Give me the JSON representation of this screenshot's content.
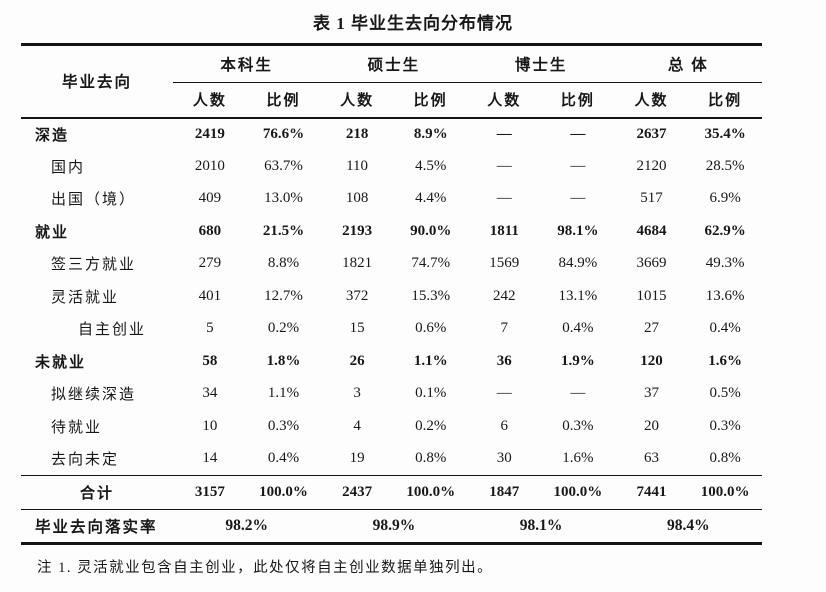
{
  "title": "表 1 毕业生去向分布情况",
  "table": {
    "corner_label": "毕业去向",
    "groups": [
      "本科生",
      "硕士生",
      "博士生",
      "总  体"
    ],
    "subheaders": [
      "人数",
      "比例"
    ],
    "rows": [
      {
        "label": "深造",
        "values": [
          "2419",
          "76.6%",
          "218",
          "8.9%",
          "—",
          "—",
          "2637",
          "35.4%"
        ]
      },
      {
        "label": "国内",
        "values": [
          "2010",
          "63.7%",
          "110",
          "4.5%",
          "—",
          "—",
          "2120",
          "28.5%"
        ]
      },
      {
        "label": "出国（境）",
        "values": [
          "409",
          "13.0%",
          "108",
          "4.4%",
          "—",
          "—",
          "517",
          "6.9%"
        ]
      },
      {
        "label": "就业",
        "values": [
          "680",
          "21.5%",
          "2193",
          "90.0%",
          "1811",
          "98.1%",
          "4684",
          "62.9%"
        ]
      },
      {
        "label": "签三方就业",
        "values": [
          "279",
          "8.8%",
          "1821",
          "74.7%",
          "1569",
          "84.9%",
          "3669",
          "49.3%"
        ]
      },
      {
        "label": "灵活就业",
        "values": [
          "401",
          "12.7%",
          "372",
          "15.3%",
          "242",
          "13.1%",
          "1015",
          "13.6%"
        ]
      },
      {
        "label": "自主创业",
        "values": [
          "5",
          "0.2%",
          "15",
          "0.6%",
          "7",
          "0.4%",
          "27",
          "0.4%"
        ]
      },
      {
        "label": "未就业",
        "values": [
          "58",
          "1.8%",
          "26",
          "1.1%",
          "36",
          "1.9%",
          "120",
          "1.6%"
        ]
      },
      {
        "label": "拟继续深造",
        "values": [
          "34",
          "1.1%",
          "3",
          "0.1%",
          "—",
          "—",
          "37",
          "0.5%"
        ]
      },
      {
        "label": "待就业",
        "values": [
          "10",
          "0.3%",
          "4",
          "0.2%",
          "6",
          "0.3%",
          "20",
          "0.3%"
        ]
      },
      {
        "label": "去向未定",
        "values": [
          "14",
          "0.4%",
          "19",
          "0.8%",
          "30",
          "1.6%",
          "63",
          "0.8%"
        ]
      }
    ],
    "total_row": {
      "label": "合计",
      "values": [
        "3157",
        "100.0%",
        "2437",
        "100.0%",
        "1847",
        "100.0%",
        "7441",
        "100.0%"
      ]
    },
    "rate_row": {
      "label": "毕业去向落实率",
      "values": [
        "98.2%",
        "98.9%",
        "98.1%",
        "98.4%"
      ]
    }
  },
  "note": "注 1. 灵活就业包含自主创业，此处仅将自主创业数据单独列出。"
}
